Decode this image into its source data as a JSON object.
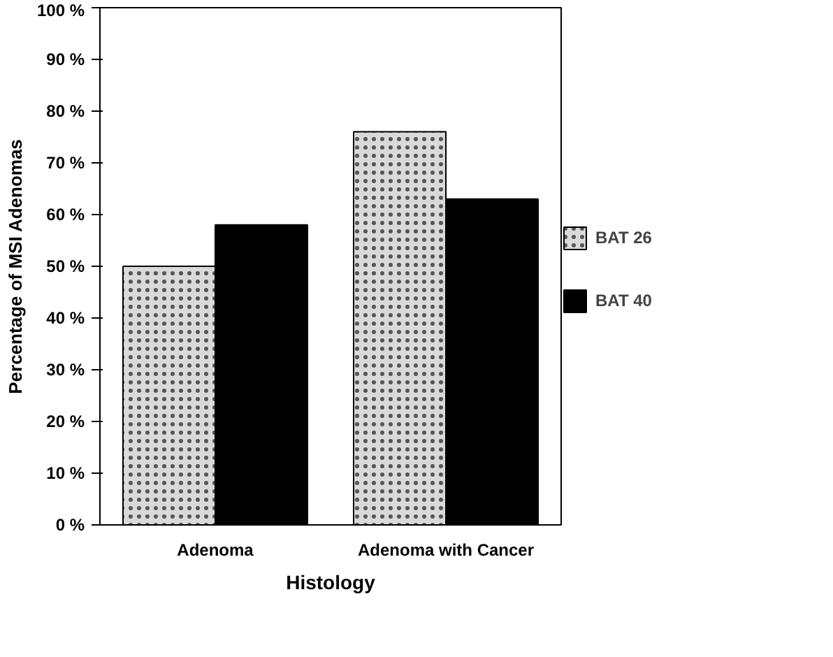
{
  "chart_data": {
    "type": "bar",
    "xlabel": "Histology",
    "ylabel": "Percentage of MSI Adenomas",
    "categories": [
      "Adenoma",
      "Adenoma with Cancer"
    ],
    "series": [
      {
        "name": "BAT 26",
        "color": "#d9d9d9",
        "values": [
          50,
          76
        ]
      },
      {
        "name": "BAT 40",
        "color": "#000000",
        "values": [
          58,
          63
        ]
      }
    ],
    "ylim": [
      0,
      100
    ],
    "yticks": [
      {
        "value": 0,
        "label": "0 %"
      },
      {
        "value": 10,
        "label": "10 %"
      },
      {
        "value": 20,
        "label": "20 %"
      },
      {
        "value": 30,
        "label": "30 %"
      },
      {
        "value": 40,
        "label": "40 %"
      },
      {
        "value": 50,
        "label": "50 %"
      },
      {
        "value": 60,
        "label": "60 %"
      },
      {
        "value": 70,
        "label": "70 %"
      },
      {
        "value": 80,
        "label": "80 %"
      },
      {
        "value": 90,
        "label": "90 %"
      },
      {
        "value": 100,
        "label": "100 %"
      }
    ],
    "grid": false,
    "legend": "right"
  }
}
